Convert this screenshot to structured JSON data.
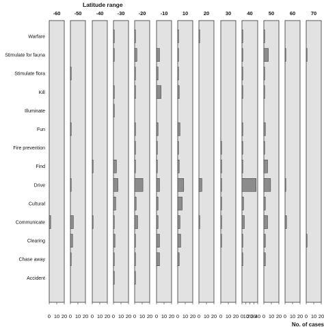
{
  "chart_data": {
    "type": "bar",
    "orientation": "horizontal-small-multiples",
    "title_top": "Latitude range",
    "title_bottom": "No. of cases",
    "bands": [
      "-60",
      "-50",
      "-40",
      "-30",
      "-20",
      "-10",
      "10",
      "20",
      "30",
      "40",
      "50",
      "60",
      "70"
    ],
    "band_xlim": [
      [
        0,
        20
      ],
      [
        0,
        20
      ],
      [
        0,
        20
      ],
      [
        0,
        20
      ],
      [
        0,
        20
      ],
      [
        0,
        20
      ],
      [
        0,
        20
      ],
      [
        0,
        20
      ],
      [
        0,
        20
      ],
      [
        0,
        40
      ],
      [
        0,
        20
      ],
      [
        0,
        20
      ],
      [
        0,
        20
      ]
    ],
    "band_ticks": [
      [
        "0",
        "10",
        "20"
      ],
      [
        "0",
        "10",
        "20"
      ],
      [
        "0",
        "10",
        "20"
      ],
      [
        "0",
        "10",
        "20"
      ],
      [
        "0",
        "10",
        "20"
      ],
      [
        "0",
        "10",
        "20"
      ],
      [
        "0",
        "10",
        "20"
      ],
      [
        "0",
        "10",
        "20"
      ],
      [
        "0",
        "10",
        "20"
      ],
      [
        "0",
        "10",
        "20",
        "30",
        "40"
      ],
      [
        "0",
        "10",
        "20"
      ],
      [
        "0",
        "10",
        "20"
      ],
      [
        "0",
        "10",
        "20"
      ]
    ],
    "categories": [
      "Warfare",
      "Stimulate for fauna",
      "Stimulate flora",
      "Kill",
      "Illuminate",
      "Fun",
      "Fire prevention",
      "Find",
      "Drive",
      "Cultural",
      "Communicate",
      "Clearing",
      "Chase away",
      "Accident"
    ],
    "values": [
      [
        0,
        0,
        0,
        1,
        1,
        0,
        1,
        1,
        0,
        1,
        1,
        0,
        0
      ],
      [
        0,
        0,
        0,
        1,
        3,
        4,
        1,
        0,
        0,
        1,
        6,
        1,
        1
      ],
      [
        0,
        1,
        0,
        0,
        1,
        2,
        1,
        0,
        0,
        1,
        1,
        0,
        0
      ],
      [
        0,
        0,
        0,
        1,
        1,
        6,
        2,
        0,
        0,
        1,
        1,
        0,
        0
      ],
      [
        0,
        0,
        0,
        1,
        0,
        0,
        0,
        0,
        0,
        0,
        0,
        0,
        0
      ],
      [
        0,
        1,
        0,
        0,
        1,
        2,
        3,
        0,
        0,
        1,
        2,
        0,
        0
      ],
      [
        0,
        0,
        0,
        0,
        1,
        1,
        1,
        0,
        1,
        1,
        1,
        0,
        0
      ],
      [
        0,
        0,
        1,
        4,
        1,
        1,
        2,
        0,
        1,
        1,
        5,
        0,
        0
      ],
      [
        0,
        1,
        0,
        6,
        11,
        4,
        8,
        4,
        1,
        36,
        9,
        1,
        0
      ],
      [
        0,
        0,
        0,
        3,
        2,
        2,
        6,
        0,
        1,
        4,
        2,
        0,
        0
      ],
      [
        2,
        4,
        1,
        1,
        4,
        2,
        3,
        1,
        1,
        6,
        5,
        2,
        0
      ],
      [
        0,
        3,
        0,
        2,
        1,
        4,
        4,
        0,
        1,
        1,
        2,
        0,
        1
      ],
      [
        0,
        1,
        0,
        1,
        1,
        4,
        2,
        0,
        0,
        1,
        2,
        0,
        0
      ],
      [
        0,
        0,
        0,
        1,
        1,
        0,
        0,
        0,
        0,
        0,
        0,
        0,
        0
      ]
    ],
    "grid": false,
    "colors": {
      "panel_fill": "#e2e2e2",
      "panel_stroke": "#333333",
      "bar_fill": "#8c8c8c",
      "bar_stroke": "#333333"
    }
  }
}
